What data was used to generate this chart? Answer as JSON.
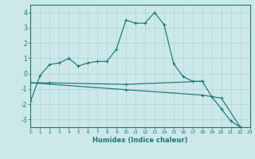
{
  "xlabel": "Humidex (Indice chaleur)",
  "color": "#1a7a6e",
  "bg_color": "#cce8ea",
  "grid_color": "#aed4d6",
  "ylim": [
    -3.5,
    4.5
  ],
  "xlim": [
    0,
    23
  ],
  "line1_x": [
    0,
    1,
    2,
    3,
    4,
    5,
    6,
    7,
    8,
    9,
    10,
    11,
    12,
    13,
    14,
    15,
    16,
    17,
    18,
    19,
    20,
    21,
    22
  ],
  "line1_y": [
    -1.8,
    -0.1,
    0.6,
    0.7,
    1.0,
    0.5,
    0.7,
    0.8,
    0.8,
    1.6,
    3.5,
    3.3,
    3.3,
    4.0,
    3.2,
    0.65,
    -0.2,
    -0.5,
    -0.5,
    -1.5,
    -2.3,
    -3.1,
    -3.5
  ],
  "line2_x": [
    0,
    2,
    10,
    18
  ],
  "line2_y": [
    -0.6,
    -0.6,
    -0.7,
    -0.5
  ],
  "line3_x": [
    0,
    10,
    18,
    20,
    22
  ],
  "line3_y": [
    -0.6,
    -1.05,
    -1.4,
    -1.6,
    -3.5
  ],
  "yticks": [
    -3,
    -2,
    -1,
    0,
    1,
    2,
    3,
    4
  ],
  "xticks": [
    0,
    1,
    2,
    3,
    4,
    5,
    6,
    7,
    8,
    9,
    10,
    11,
    12,
    13,
    14,
    15,
    16,
    17,
    18,
    19,
    20,
    21,
    22,
    23
  ]
}
